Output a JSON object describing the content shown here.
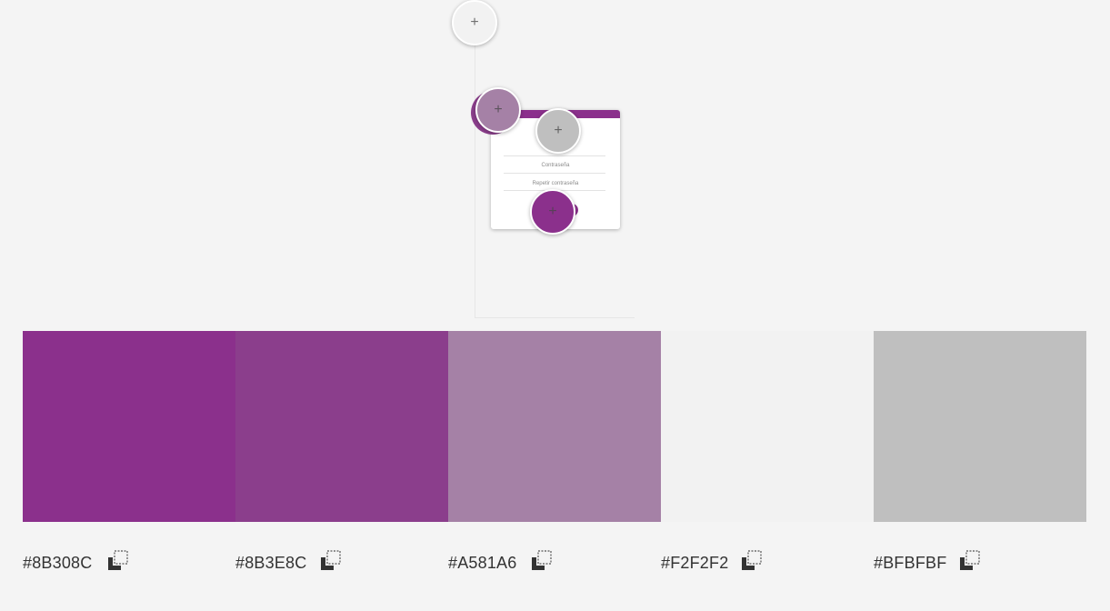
{
  "preview": {
    "form_fields": [
      "Contraseña",
      "Repetir contraseña"
    ],
    "pins": [
      {
        "color": "#F2F2F2",
        "icon": "plus-icon",
        "label": "+"
      },
      {
        "color": "#A581A6",
        "icon": "plus-icon",
        "label": "+"
      },
      {
        "color": "#BFBFBF",
        "icon": "plus-icon",
        "label": "+"
      },
      {
        "color": "#8B308C",
        "icon": "plus-icon",
        "label": "+"
      }
    ]
  },
  "palette": [
    {
      "hex": "#8B308C",
      "color": "#8B308C",
      "copy_icon": "copy-icon"
    },
    {
      "hex": "#8B3E8C",
      "color": "#8B3E8C",
      "copy_icon": "copy-icon"
    },
    {
      "hex": "#A581A6",
      "color": "#A581A6",
      "copy_icon": "copy-icon"
    },
    {
      "hex": "#F2F2F2",
      "color": "#F2F2F2",
      "copy_icon": "copy-icon"
    },
    {
      "hex": "#BFBFBF",
      "color": "#BFBFBF",
      "copy_icon": "copy-icon"
    }
  ]
}
